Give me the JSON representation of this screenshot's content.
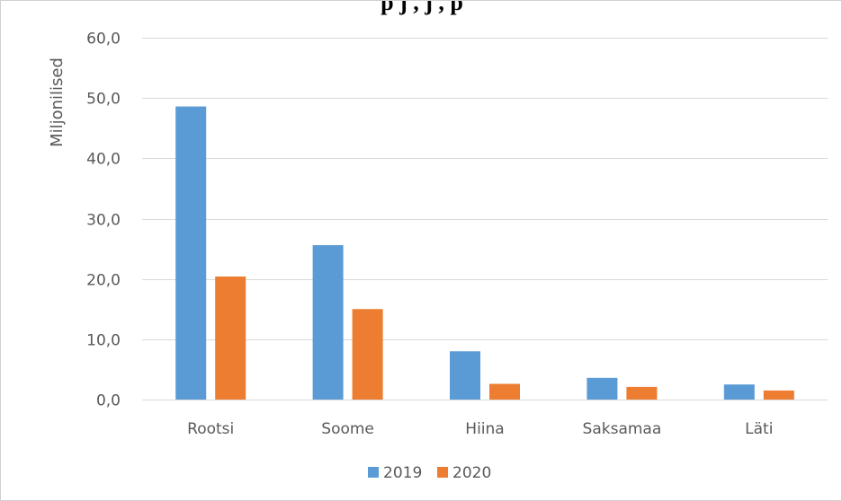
{
  "chart_data": {
    "type": "bar",
    "title": "",
    "title_fragment": "p                    j     ,      j           ,   p",
    "ylabel": "Miljonilised",
    "xlabel": "",
    "categories": [
      "Rootsi",
      "Soome",
      "Hiina",
      "Saksamaa",
      "Läti"
    ],
    "series": [
      {
        "name": "2019",
        "color": "#5b9bd5",
        "values": [
          48.6,
          25.6,
          8.0,
          3.6,
          2.5
        ]
      },
      {
        "name": "2020",
        "color": "#ed7d31",
        "values": [
          20.4,
          15.0,
          2.6,
          2.1,
          1.5
        ]
      }
    ],
    "ylim": [
      0,
      60
    ],
    "yticks": [
      "0,0",
      "10,0",
      "20,0",
      "30,0",
      "40,0",
      "50,0",
      "60,0"
    ],
    "grid": true,
    "legend_position": "bottom"
  }
}
